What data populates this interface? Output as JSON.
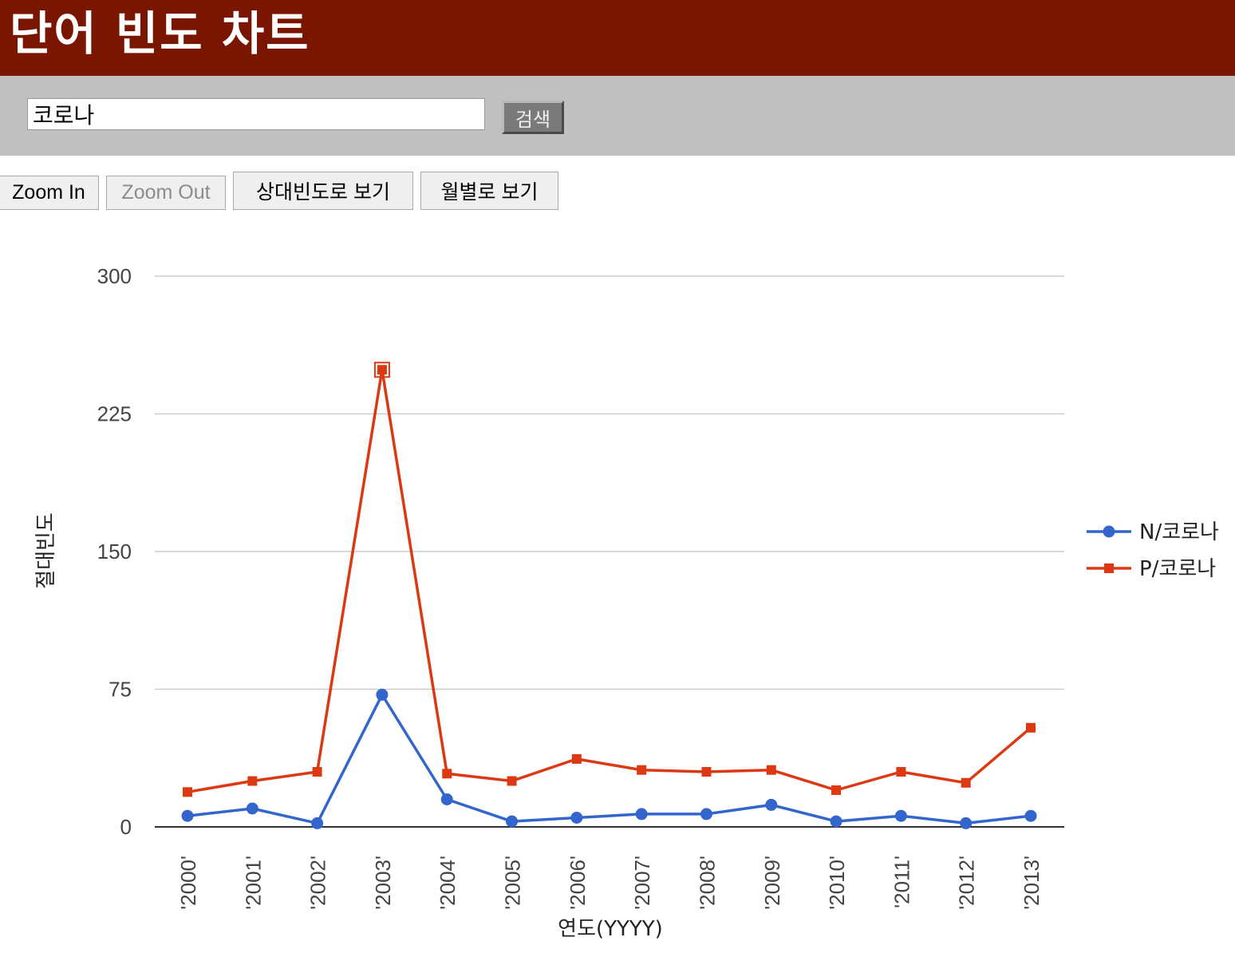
{
  "header": {
    "title": "단어 빈도 차트"
  },
  "search": {
    "value": "코로나",
    "button_label": "검색"
  },
  "toolbar": {
    "zoom_in_label": "Zoom In",
    "zoom_out_label": "Zoom Out",
    "zoom_out_disabled": true,
    "relative_freq_label": "상대빈도로 보기",
    "monthly_label": "월별로 보기"
  },
  "colors": {
    "header_bg": "#7a1500",
    "search_bar_bg": "#c0c0c0",
    "series_n": "#3366cc",
    "series_p": "#dc3912"
  },
  "chart_data": {
    "type": "line",
    "title": "",
    "xlabel": "연도(YYYY)",
    "ylabel": "절대빈도",
    "x": [
      "'2000'",
      "'2001'",
      "'2002'",
      "'2003'",
      "'2004'",
      "'2005'",
      "'2006'",
      "'2007'",
      "'2008'",
      "'2009'",
      "'2010'",
      "'2011'",
      "'2012'",
      "'2013'"
    ],
    "ylim": [
      0,
      300
    ],
    "yticks": [
      0,
      75,
      150,
      225,
      300
    ],
    "grid": true,
    "legend_position": "right",
    "highlighted_point": {
      "series": "P/코로나",
      "x": "'2003'"
    },
    "series": [
      {
        "name": "N/코로나",
        "marker": "circle",
        "color": "#3366cc",
        "values": [
          6,
          10,
          2,
          72,
          15,
          3,
          5,
          7,
          7,
          12,
          3,
          6,
          2,
          6
        ]
      },
      {
        "name": "P/코로나",
        "marker": "square",
        "color": "#dc3912",
        "values": [
          19,
          25,
          30,
          249,
          29,
          25,
          37,
          31,
          30,
          31,
          20,
          30,
          24,
          54
        ]
      }
    ]
  }
}
